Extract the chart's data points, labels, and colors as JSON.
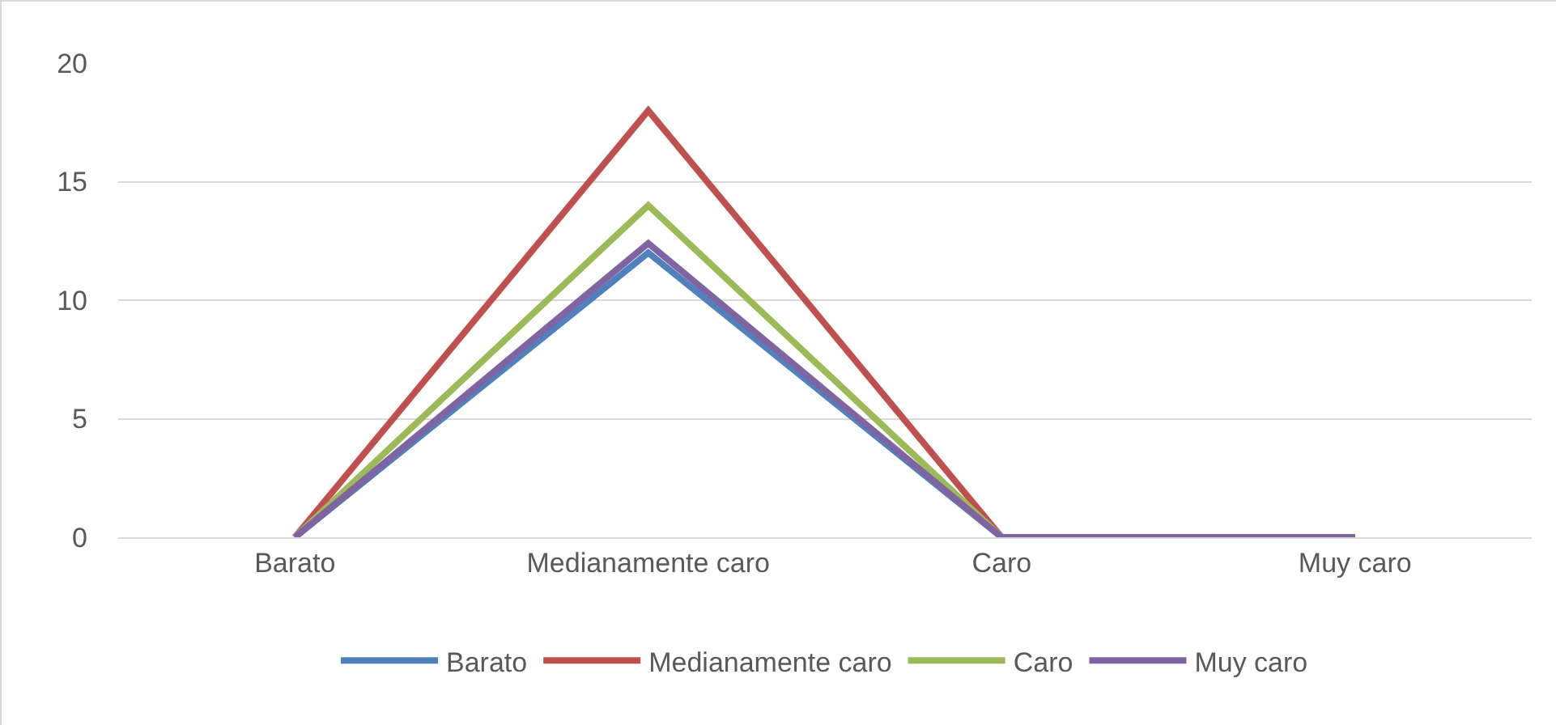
{
  "chart_data": {
    "type": "line",
    "categories": [
      "Barato",
      "Medianamente caro",
      "Caro",
      "Muy caro"
    ],
    "series": [
      {
        "name": "Barato",
        "color": "#4f81bd",
        "values": [
          0,
          12,
          0,
          0
        ]
      },
      {
        "name": "Medianamente caro",
        "color": "#c0504d",
        "values": [
          0,
          18,
          0,
          0
        ]
      },
      {
        "name": "Caro",
        "color": "#9bbb59",
        "values": [
          0,
          14,
          0,
          0
        ]
      },
      {
        "name": "Muy caro",
        "color": "#8064a2",
        "values": [
          0,
          12.4,
          0,
          0
        ]
      }
    ],
    "ylim": [
      0,
      20
    ],
    "yticks": [
      0,
      5,
      10,
      15,
      20
    ],
    "grid": "y",
    "legend": "bottom",
    "marker": "none",
    "line_style": "solid"
  }
}
